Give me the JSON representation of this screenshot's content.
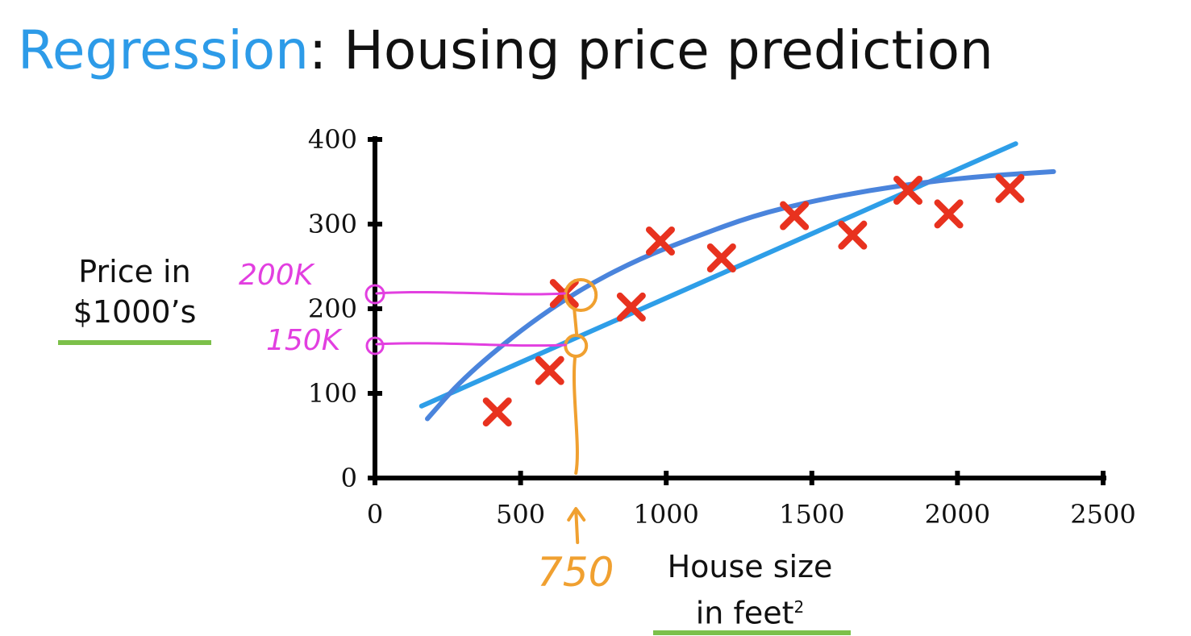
{
  "slide": {
    "title_keyword": "Regression",
    "title_rest": ": Housing price prediction",
    "ylabel_line1": "Price in",
    "ylabel_line2": "$1000’s",
    "xlabel_line1": "House size",
    "xlabel_line2": "in feet",
    "xlabel_superscript": "2"
  },
  "annotations": {
    "pink_high": "200K",
    "pink_low": "150K",
    "orange_x": "750"
  },
  "colors": {
    "title_accent": "#2d9be8",
    "points": "#e8321f",
    "fit_line": "#2e9ee8",
    "fit_curve": "#4a84dc",
    "pink": "#e23fe0",
    "orange": "#f0a030",
    "underline": "#7cc04a"
  },
  "chart_data": {
    "type": "scatter",
    "xlabel": "House size in feet²",
    "ylabel": "Price in $1000’s",
    "xlim": [
      0,
      2500
    ],
    "ylim": [
      0,
      400
    ],
    "x_ticks": [
      0,
      500,
      1000,
      1500,
      2000,
      2500
    ],
    "y_ticks": [
      0,
      100,
      200,
      300,
      400
    ],
    "grid": false,
    "points": [
      {
        "x": 420,
        "y": 78
      },
      {
        "x": 600,
        "y": 127
      },
      {
        "x": 650,
        "y": 218
      },
      {
        "x": 880,
        "y": 202
      },
      {
        "x": 980,
        "y": 280
      },
      {
        "x": 1190,
        "y": 260
      },
      {
        "x": 1440,
        "y": 310
      },
      {
        "x": 1640,
        "y": 287
      },
      {
        "x": 1830,
        "y": 340
      },
      {
        "x": 1970,
        "y": 312
      },
      {
        "x": 2180,
        "y": 342
      }
    ],
    "fit_line": [
      {
        "x": 160,
        "y": 85
      },
      {
        "x": 2200,
        "y": 395
      }
    ],
    "fit_curve": [
      {
        "x": 180,
        "y": 70
      },
      {
        "x": 300,
        "y": 117
      },
      {
        "x": 500,
        "y": 175
      },
      {
        "x": 700,
        "y": 222
      },
      {
        "x": 900,
        "y": 258
      },
      {
        "x": 1100,
        "y": 285
      },
      {
        "x": 1300,
        "y": 310
      },
      {
        "x": 1500,
        "y": 327
      },
      {
        "x": 1700,
        "y": 340
      },
      {
        "x": 1900,
        "y": 350
      },
      {
        "x": 2100,
        "y": 357
      },
      {
        "x": 2330,
        "y": 362
      }
    ],
    "highlight": {
      "x": 690,
      "y_curve": 220,
      "y_line": 160
    }
  }
}
